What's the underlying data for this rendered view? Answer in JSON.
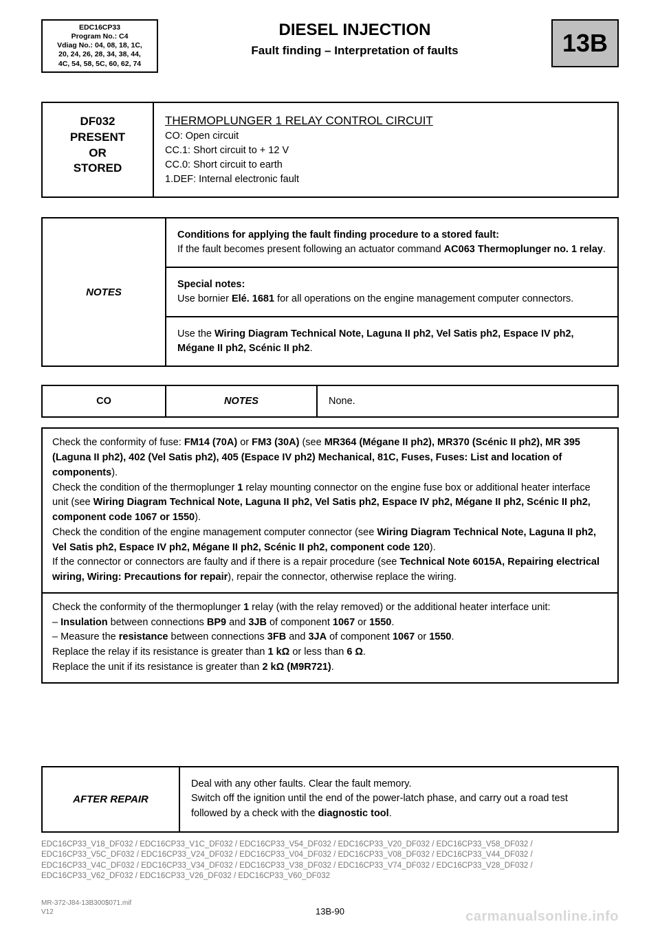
{
  "header": {
    "meta_line1": "EDC16CP33",
    "meta_line2": "Program No.: C4",
    "meta_line3": "Vdiag No.: 04, 08, 18, 1C,",
    "meta_line4": "20, 24, 26, 28, 34, 38, 44,",
    "meta_line5": "4C, 54, 58, 5C, 60, 62, 74",
    "title": "DIESEL INJECTION",
    "subtitle": "Fault finding – Interpretation of faults",
    "section": "13B"
  },
  "fault": {
    "code_l1": "DF032",
    "code_l2": "PRESENT",
    "code_l3": "OR",
    "code_l4": "STORED",
    "title": "THERMOPLUNGER 1 RELAY CONTROL CIRCUIT",
    "d1": "CO: Open circuit",
    "d2": "CC.1: Short circuit to + 12 V",
    "d3": "CC.0: Short circuit to earth",
    "d4": "1.DEF: Internal electronic fault"
  },
  "notes": {
    "label": "NOTES",
    "c1a": "Conditions for applying the fault finding procedure to a stored fault:",
    "c1b_pre": "If the fault becomes present following an actuator command ",
    "c1b_bold": "AC063 Thermoplunger no. 1 relay",
    "c1b_post": ".",
    "c2a": "Special notes:",
    "c2b_pre": "Use bornier ",
    "c2b_bold": "Elé. 1681",
    "c2b_post": " for all operations on the engine management computer connectors.",
    "c3_pre": "Use the ",
    "c3_bold": "Wiring Diagram Technical Note, Laguna II ph2, Vel Satis ph2, Espace IV ph2, Mégane II ph2, Scénic II ph2",
    "c3_post": "."
  },
  "co": {
    "a": "CO",
    "b": "NOTES",
    "c": "None."
  },
  "check1": {
    "p1_pre": "Check the conformity of fuse: ",
    "p1_b1": "FM14 (70A)",
    "p1_mid": " or ",
    "p1_b2": "FM3 (30A)",
    "p1_mid2": " (see ",
    "p1_b3": "MR364 (Mégane II ph2), MR370 (Scénic II ph2), MR 395 (Laguna II ph2), 402 (Vel Satis ph2), 405 (Espace IV ph2) Mechanical, 81C, Fuses, Fuses: List and location of components",
    "p1_post": ").",
    "p2_pre": "Check the condition of the thermoplunger ",
    "p2_b1": "1",
    "p2_mid": " relay mounting connector on the engine fuse box or additional heater interface unit (see ",
    "p2_b2": "Wiring Diagram Technical Note, Laguna II ph2, Vel Satis ph2, Espace IV ph2, Mégane II ph2, Scénic II ph2, component code 1067 or 1550",
    "p2_post": ").",
    "p3_pre": "Check the condition of the engine management computer connector (see ",
    "p3_b1": "Wiring Diagram Technical Note, Laguna II ph2, Vel Satis ph2, Espace IV ph2, Mégane II ph2, Scénic II ph2, component code 120",
    "p3_post": ").",
    "p4_pre": "If the connector or connectors are faulty and if there is a repair procedure (see ",
    "p4_b1": "Technical Note 6015A, Repairing electrical wiring, Wiring: Precautions for repair",
    "p4_post": "), repair the connector, otherwise replace the wiring."
  },
  "check2": {
    "p1_pre": "Check the conformity of the thermoplunger ",
    "p1_b1": "1",
    "p1_post": " relay (with the relay removed) or the additional heater interface unit:",
    "l1_pre": "– ",
    "l1_b1": "Insulation",
    "l1_mid": " between connections ",
    "l1_b2": "BP9",
    "l1_mid2": " and ",
    "l1_b3": "3JB",
    "l1_mid3": " of component ",
    "l1_b4": "1067",
    "l1_mid4": " or ",
    "l1_b5": "1550",
    "l1_post": ".",
    "l2_pre": "– Measure the ",
    "l2_b1": "resistance",
    "l2_mid": " between connections ",
    "l2_b2": "3FB",
    "l2_mid2": " and ",
    "l2_b3": "3JA",
    "l2_mid3": " of component ",
    "l2_b4": "1067",
    "l2_mid4": " or ",
    "l2_b5": "1550",
    "l2_post": ".",
    "p3_pre": "Replace the relay if its resistance is greater than ",
    "p3_b1": "1 kΩ",
    "p3_mid": " or less than ",
    "p3_b2": "6 Ω",
    "p3_post": ".",
    "p4_pre": "Replace the unit if its resistance is greater than ",
    "p4_b1": "2 kΩ (M9R721)",
    "p4_post": "."
  },
  "after": {
    "label": "AFTER REPAIR",
    "l1": "Deal with any other faults. Clear the fault memory.",
    "l2_pre": "Switch off the ignition until the end of the power-latch phase, and carry out a road test followed by a check with the ",
    "l2_b": "diagnostic tool",
    "l2_post": "."
  },
  "refs": "EDC16CP33_V18_DF032 / EDC16CP33_V1C_DF032 / EDC16CP33_V54_DF032 / EDC16CP33_V20_DF032 / EDC16CP33_V58_DF032 / EDC16CP33_V5C_DF032 / EDC16CP33_V24_DF032 / EDC16CP33_V04_DF032 / EDC16CP33_V08_DF032 / EDC16CP33_V44_DF032 / EDC16CP33_V4C_DF032 / EDC16CP33_V34_DF032 / EDC16CP33_V38_DF032 / EDC16CP33_V74_DF032 / EDC16CP33_V28_DF032 / EDC16CP33_V62_DF032 / EDC16CP33_V26_DF032 / EDC16CP33_V60_DF032",
  "footer": {
    "left1": "MR-372-J84-13B300$071.mif",
    "left2": "V12",
    "center": "13B-90",
    "watermark": "carmanualsonline.info"
  }
}
